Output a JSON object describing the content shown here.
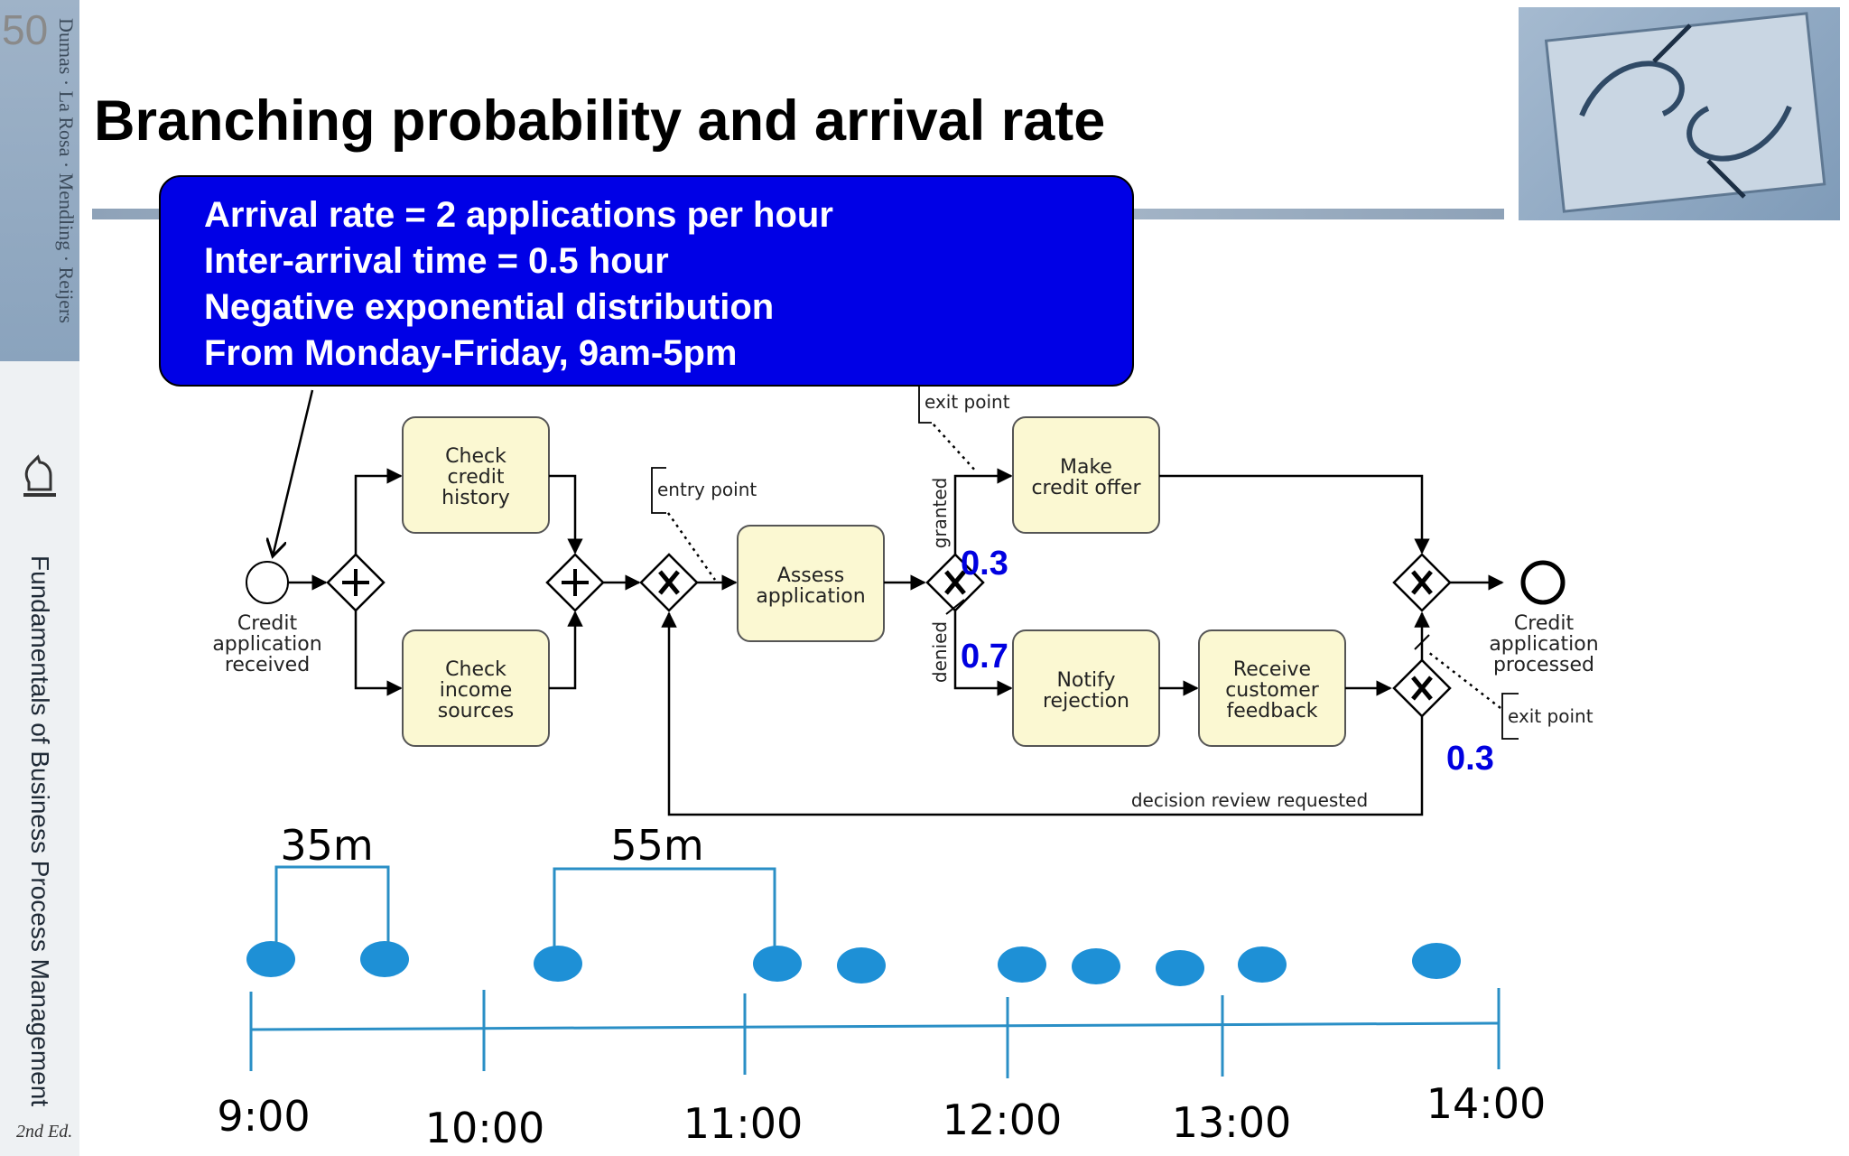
{
  "slide": {
    "number": "50",
    "title": "Branching probability and arrival rate",
    "authors": "Dumas · La Rosa · Mendling · Reijers",
    "book_title": "Fundamentals of Business Process Management",
    "edition": "2nd Ed."
  },
  "callout": {
    "lines": [
      "Arrival rate = 2 applications per hour",
      "Inter-arrival time = 0.5 hour",
      "Negative exponential distribution",
      "From Monday-Friday, 9am-5pm"
    ]
  },
  "process": {
    "start_event": [
      "Credit",
      "application",
      "received"
    ],
    "end_event": [
      "Credit",
      "application",
      "processed"
    ],
    "tasks": {
      "check_credit": [
        "Check",
        "credit",
        "history"
      ],
      "check_income": [
        "Check",
        "income",
        "sources"
      ],
      "assess": [
        "Assess",
        "application"
      ],
      "make_offer": [
        "Make",
        "credit offer"
      ],
      "notify": [
        "Notify",
        "rejection"
      ],
      "receive_feedback": [
        "Receive",
        "customer",
        "feedback"
      ]
    },
    "annotations": {
      "entry_point": "entry point",
      "exit_point_top": "exit point",
      "exit_point_bottom": "exit point"
    },
    "flow_labels": {
      "granted": "granted",
      "denied": "denied",
      "review": "decision review requested"
    },
    "probabilities": {
      "granted": "0.3",
      "denied": "0.7",
      "review": "0.3"
    }
  },
  "timeline": {
    "ticks": [
      "9:00",
      "10:00",
      "11:00",
      "12:00",
      "13:00",
      "14:00"
    ],
    "gaps": [
      "35m",
      "55m"
    ],
    "arrivals_count_shown": 10,
    "arrival_color": "#1e90d6"
  },
  "colors": {
    "callout_bg": "#0000e6",
    "task_fill": "#fbf8d2",
    "probability_text": "#0000e0"
  }
}
